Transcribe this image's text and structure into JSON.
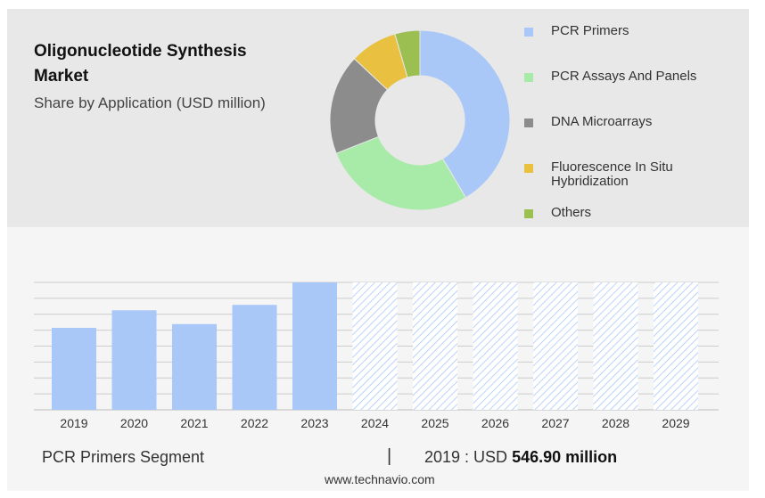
{
  "header": {
    "title": "Oligonucleotide Synthesis Market",
    "subtitle": "Share by Application (USD million)"
  },
  "colors": {
    "pcr_primers": "#a9c8f8",
    "pcr_assays": "#a8eba8",
    "dna_microarrays": "#8c8c8c",
    "fish": "#e9c040",
    "others": "#9cbf52",
    "forecast_hatch": "#a9c8f8"
  },
  "chart_data": [
    {
      "type": "pie",
      "variant": "donut",
      "categories": [
        "PCR Primers",
        "PCR Assays And Panels",
        "DNA Microarrays",
        "Fluorescence In Situ Hybridization",
        "Others"
      ],
      "values": [
        41.5,
        27.5,
        18,
        8.5,
        4.5
      ],
      "legend_position": "right"
    },
    {
      "type": "bar",
      "series_name": "PCR Primers Segment",
      "categories": [
        "2019",
        "2020",
        "2021",
        "2022",
        "2023",
        "2024",
        "2025",
        "2026",
        "2027",
        "2028",
        "2029"
      ],
      "values": [
        546.9,
        664,
        572,
        700,
        850,
        850,
        850,
        850,
        850,
        850,
        850
      ],
      "forecast_from": "2024",
      "ylim": [
        0,
        850
      ],
      "grid": true
    }
  ],
  "footer": {
    "segment_label": "PCR Primers Segment",
    "separator": "|",
    "value_prefix": "2019 : USD",
    "value_highlight": "546.90 million",
    "source": "www.technavio.com"
  }
}
